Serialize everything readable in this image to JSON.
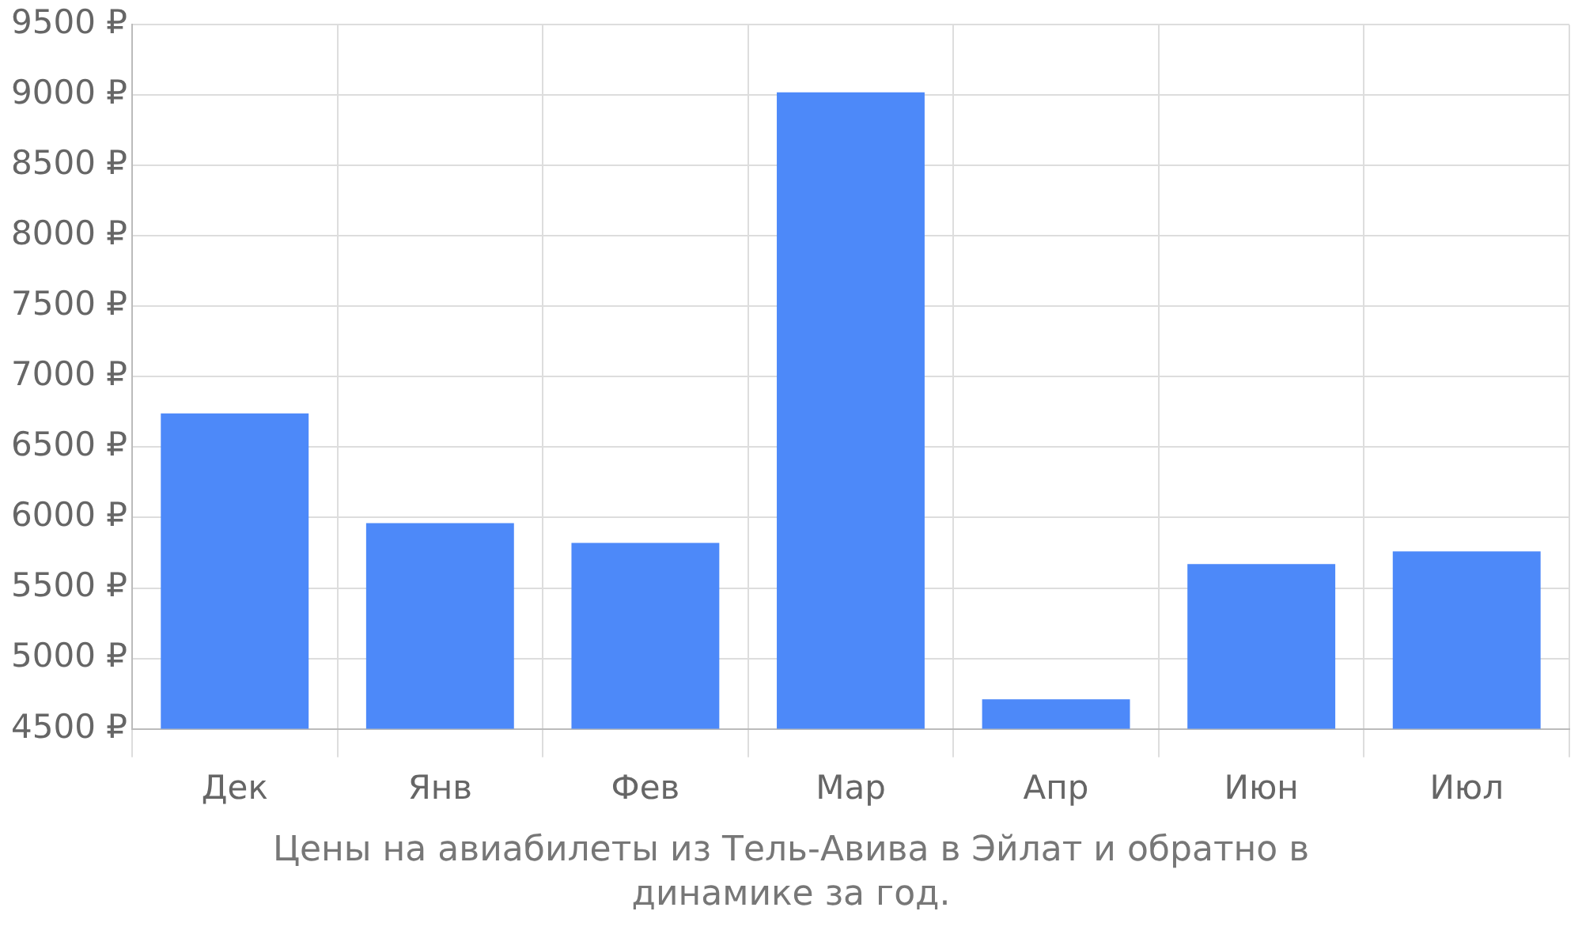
{
  "chart_data": {
    "type": "bar",
    "categories": [
      "Дек",
      "Янв",
      "Фев",
      "Мар",
      "Апр",
      "Июн",
      "Июл"
    ],
    "values": [
      6740,
      5960,
      5820,
      9020,
      4710,
      5670,
      5760
    ],
    "color": "#4d89f9",
    "ylim": [
      4500,
      9500
    ],
    "yticks": [
      {
        "value": 4500,
        "label": "4500 ₽"
      },
      {
        "value": 5000,
        "label": "5000 ₽"
      },
      {
        "value": 5500,
        "label": "5500 ₽"
      },
      {
        "value": 6000,
        "label": "6000 ₽"
      },
      {
        "value": 6500,
        "label": "6500 ₽"
      },
      {
        "value": 7000,
        "label": "7000 ₽"
      },
      {
        "value": 7500,
        "label": "7500 ₽"
      },
      {
        "value": 8000,
        "label": "8000 ₽"
      },
      {
        "value": 8500,
        "label": "8500 ₽"
      },
      {
        "value": 9000,
        "label": "9000 ₽"
      },
      {
        "value": 9500,
        "label": "9500 ₽"
      }
    ],
    "grid": true,
    "annotations": [
      "Цены на авиабилеты из Тель-Авива в Эйлат и обратно в динамике за год."
    ]
  }
}
